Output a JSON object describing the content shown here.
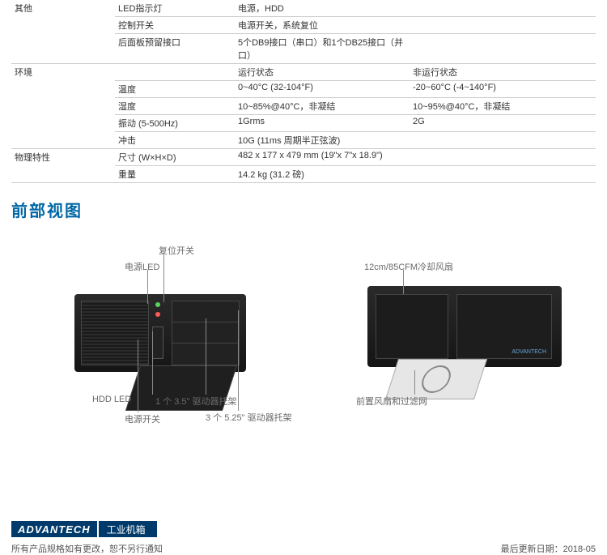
{
  "table": {
    "groups": [
      {
        "category": "其他",
        "rows": [
          {
            "label": "LED指示灯",
            "v1": "电源，HDD",
            "v2": ""
          },
          {
            "label": "控制开关",
            "v1": "电源开关，系统复位",
            "v2": ""
          },
          {
            "label": "后面板预留接口",
            "v1": "5个DB9接口（串口）和1个DB25接口（并口）",
            "v2": ""
          }
        ]
      },
      {
        "category": "环境",
        "rows": [
          {
            "label": "",
            "v1": "运行状态",
            "v2": "非运行状态"
          },
          {
            "label": "温度",
            "v1": "0~40°C (32-104°F)",
            "v2": "-20~60°C (-4~140°F)"
          },
          {
            "label": "湿度",
            "v1": "10~85%@40°C，非凝结",
            "v2": "10~95%@40°C，非凝结"
          },
          {
            "label": "振动 (5-500Hz)",
            "v1": "1Grms",
            "v2": "2G"
          },
          {
            "label": "冲击",
            "v1": "10G (11ms 周期半正弦波)",
            "v2": ""
          }
        ]
      },
      {
        "category": "物理特性",
        "rows": [
          {
            "label": "尺寸 (W×H×D)",
            "v1": "482 x 177 x 479 mm (19\"x 7\"x 18.9\")",
            "v2": ""
          },
          {
            "label": "重量",
            "v1": "14.2 kg (31.2 磅)",
            "v2": ""
          }
        ]
      }
    ]
  },
  "section_title": "前部视图",
  "section_title_color": "#0068a6",
  "diagram": {
    "labels": {
      "reset": "复位开关",
      "pled": "电源LED",
      "hddled": "HDD LED",
      "psw": "电源开关",
      "bay35": "1 个 3.5\" 驱动器托架",
      "bay525": "3 个 5.25\" 驱动器托架",
      "fan": "12cm/85CFM冷却风扇",
      "filter": "前置风扇和过滤网"
    }
  },
  "footer": {
    "brand": "ADVANTECH",
    "brand_right": "工业机箱",
    "note_left": "所有产品规格如有更改，恕不另行通知",
    "note_right_label": "最后更新日期：",
    "note_right_value": "2018-05"
  },
  "colors": {
    "brand_bg": "#003a6a",
    "row_border": "#cccccc"
  }
}
